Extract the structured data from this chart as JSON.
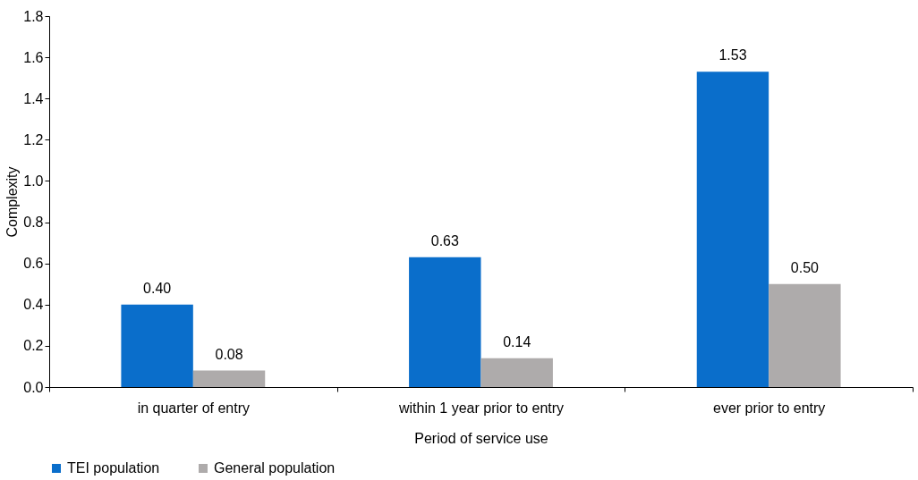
{
  "chart_data": {
    "type": "bar",
    "xlabel": "Period of service use",
    "ylabel": "Complexity",
    "categories": [
      "in quarter of entry",
      "within 1 year prior to entry",
      "ever prior to entry"
    ],
    "series": [
      {
        "name": "TEI population",
        "color": "#0a6ecb",
        "values": [
          0.4,
          0.63,
          1.53
        ],
        "value_labels": [
          "0.40",
          "0.63",
          "1.53"
        ]
      },
      {
        "name": "General population",
        "color": "#aeabab",
        "values": [
          0.08,
          0.14,
          0.5
        ],
        "value_labels": [
          "0.08",
          "0.14",
          "0.50"
        ]
      }
    ],
    "ylim": [
      0,
      1.8
    ],
    "yticks": [
      {
        "value": 0,
        "label": "0.0"
      },
      {
        "value": 0.2,
        "label": "0.2"
      },
      {
        "value": 0.4,
        "label": "0.4"
      },
      {
        "value": 0.6,
        "label": "0.6"
      },
      {
        "value": 0.8,
        "label": "0.8"
      },
      {
        "value": 1.0,
        "label": "1.0"
      },
      {
        "value": 1.2,
        "label": "1.2"
      },
      {
        "value": 1.4,
        "label": "1.4"
      },
      {
        "value": 1.6,
        "label": "1.6"
      },
      {
        "value": 1.8,
        "label": "1.8"
      }
    ],
    "grid": false,
    "legend": "bottom"
  }
}
